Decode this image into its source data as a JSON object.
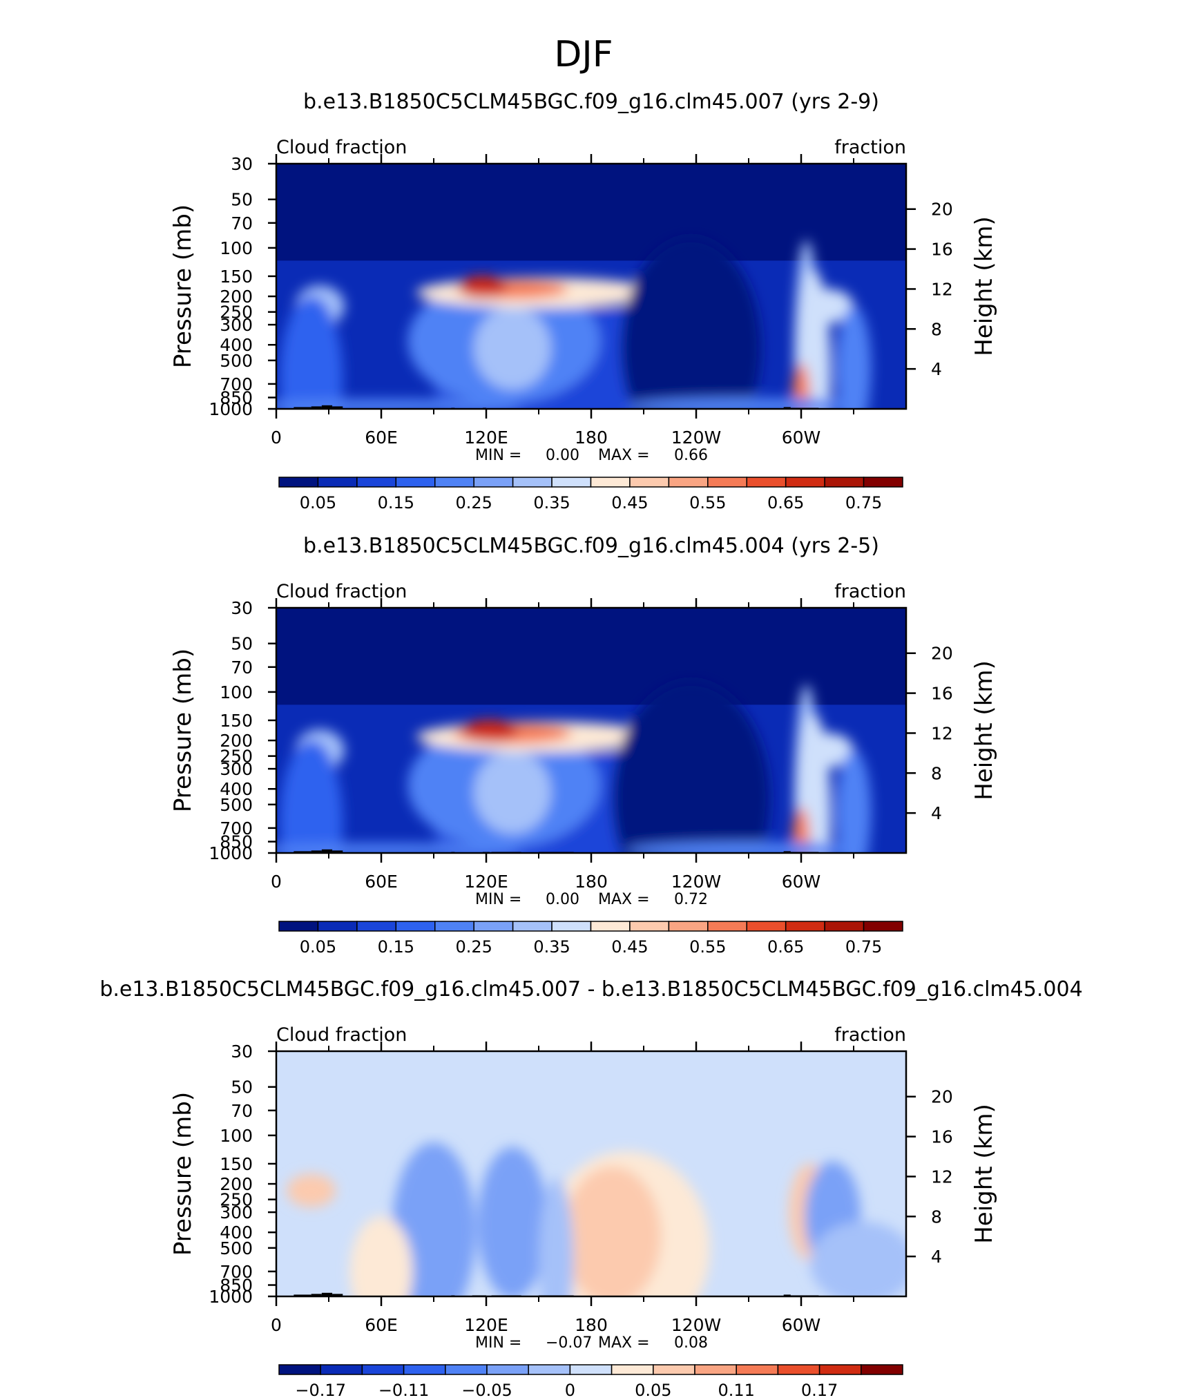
{
  "figure": {
    "title": "DJF"
  },
  "chart_data": [
    {
      "type": "heatmap",
      "title": "b.e13.B1850C5CLM45BGC.f09_g16.clm45.007 (yrs 2-9)",
      "left_label": "Cloud fraction",
      "right_label": "fraction",
      "ylabel": "Pressure (mb)",
      "y2label": "Height (km)",
      "x_ticks": [
        "0",
        "60E",
        "120E",
        "180",
        "120W",
        "60W"
      ],
      "y_ticks": [
        "30",
        "50",
        "70",
        "100",
        "150",
        "200",
        "250",
        "300",
        "400",
        "500",
        "700",
        "850",
        "1000"
      ],
      "y_tick_values": [
        30,
        50,
        70,
        100,
        150,
        200,
        250,
        300,
        400,
        500,
        700,
        850,
        1000
      ],
      "y2_ticks": [
        "20",
        "16",
        "12",
        "8",
        "4"
      ],
      "y2_tick_values": [
        20,
        16,
        12,
        8,
        4
      ],
      "xlim": [
        0,
        360
      ],
      "ylim": [
        1000,
        30
      ],
      "min_label": "MIN =",
      "min_value": "0.00",
      "max_label": "MAX =",
      "max_value": "0.66",
      "colorbar_labels": [
        "0.05",
        "0.15",
        "0.25",
        "0.35",
        "0.45",
        "0.55",
        "0.65",
        "0.75"
      ],
      "colorbar_colors": [
        "#00137f",
        "#0a2bb6",
        "#1a45d9",
        "#2e62ef",
        "#4f82f5",
        "#7aa1f7",
        "#a5c1f9",
        "#cfe0fb",
        "#fde9d6",
        "#fccaae",
        "#f9a583",
        "#f57b56",
        "#ea4f2c",
        "#d02c12",
        "#aa1506",
        "#820000"
      ]
    },
    {
      "type": "heatmap",
      "title": "b.e13.B1850C5CLM45BGC.f09_g16.clm45.004 (yrs 2-5)",
      "left_label": "Cloud fraction",
      "right_label": "fraction",
      "ylabel": "Pressure (mb)",
      "y2label": "Height (km)",
      "x_ticks": [
        "0",
        "60E",
        "120E",
        "180",
        "120W",
        "60W"
      ],
      "y_ticks": [
        "30",
        "50",
        "70",
        "100",
        "150",
        "200",
        "250",
        "300",
        "400",
        "500",
        "700",
        "850",
        "1000"
      ],
      "y_tick_values": [
        30,
        50,
        70,
        100,
        150,
        200,
        250,
        300,
        400,
        500,
        700,
        850,
        1000
      ],
      "y2_ticks": [
        "20",
        "16",
        "12",
        "8",
        "4"
      ],
      "y2_tick_values": [
        20,
        16,
        12,
        8,
        4
      ],
      "xlim": [
        0,
        360
      ],
      "ylim": [
        1000,
        30
      ],
      "min_label": "MIN =",
      "min_value": "0.00",
      "max_label": "MAX =",
      "max_value": "0.72",
      "colorbar_labels": [
        "0.05",
        "0.15",
        "0.25",
        "0.35",
        "0.45",
        "0.55",
        "0.65",
        "0.75"
      ],
      "colorbar_colors": [
        "#00137f",
        "#0a2bb6",
        "#1a45d9",
        "#2e62ef",
        "#4f82f5",
        "#7aa1f7",
        "#a5c1f9",
        "#cfe0fb",
        "#fde9d6",
        "#fccaae",
        "#f9a583",
        "#f57b56",
        "#ea4f2c",
        "#d02c12",
        "#aa1506",
        "#820000"
      ]
    },
    {
      "type": "heatmap",
      "title": "b.e13.B1850C5CLM45BGC.f09_g16.clm45.007 - b.e13.B1850C5CLM45BGC.f09_g16.clm45.004",
      "left_label": "Cloud fraction",
      "right_label": "fraction",
      "ylabel": "Pressure (mb)",
      "y2label": "Height (km)",
      "x_ticks": [
        "0",
        "60E",
        "120E",
        "180",
        "120W",
        "60W"
      ],
      "y_ticks": [
        "30",
        "50",
        "70",
        "100",
        "150",
        "200",
        "250",
        "300",
        "400",
        "500",
        "700",
        "850",
        "1000"
      ],
      "y_tick_values": [
        30,
        50,
        70,
        100,
        150,
        200,
        250,
        300,
        400,
        500,
        700,
        850,
        1000
      ],
      "y2_ticks": [
        "20",
        "16",
        "12",
        "8",
        "4"
      ],
      "y2_tick_values": [
        20,
        16,
        12,
        8,
        4
      ],
      "xlim": [
        0,
        360
      ],
      "ylim": [
        1000,
        30
      ],
      "min_label": "MIN =",
      "min_value": "−0.07",
      "max_label": "MAX =",
      "max_value": "0.08",
      "colorbar_labels": [
        "−0.17",
        "−0.11",
        "−0.05",
        "0",
        "0.05",
        "0.11",
        "0.17"
      ],
      "colorbar_colors": [
        "#00137f",
        "#0a2bb6",
        "#1a45d9",
        "#2e62ef",
        "#4f82f5",
        "#7aa1f7",
        "#a5c1f9",
        "#cfe0fb",
        "#fde9d6",
        "#fccaae",
        "#f9a583",
        "#f57b56",
        "#ea4f2c",
        "#d02c12",
        "#820000"
      ]
    }
  ]
}
